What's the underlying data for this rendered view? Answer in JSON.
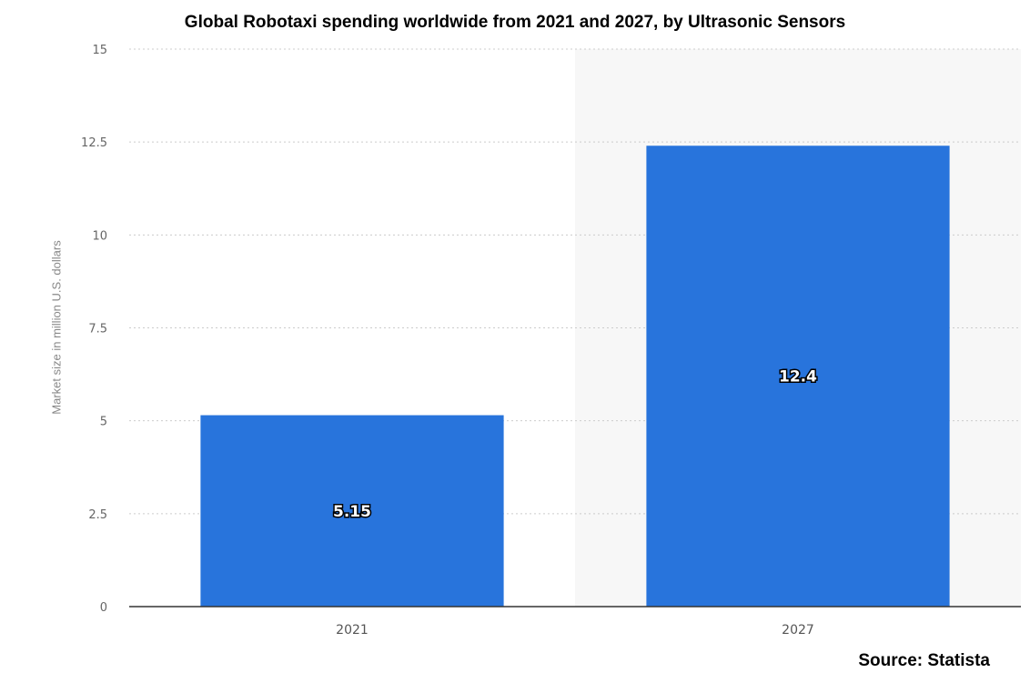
{
  "chart_data": {
    "type": "bar",
    "title": "Global Robotaxi spending worldwide from 2021 and 2027, by Ultrasonic Sensors",
    "ylabel": "Market size in million U.S. dollars",
    "xlabel": "",
    "categories": [
      "2021",
      "2027"
    ],
    "values": [
      5.15,
      12.4
    ],
    "data_labels": [
      "5.15",
      "12.4"
    ],
    "ylim": [
      0,
      15
    ],
    "yticks": [
      0,
      2.5,
      5,
      7.5,
      10,
      12.5,
      15
    ],
    "ytick_labels": [
      "0",
      "2.5",
      "5",
      "7.5",
      "10",
      "12.5",
      "15"
    ],
    "grid": true,
    "bar_color": "#2874dc",
    "highlight_band_color": "#f7f7f7",
    "source": "Source: Statista"
  }
}
